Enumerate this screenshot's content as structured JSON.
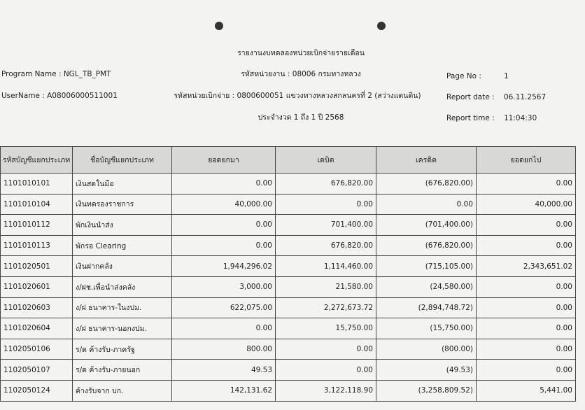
{
  "header": {
    "title": "รายงานงบทดลองหน่วยเบิกจ่ายรายเดือน",
    "program_name": "Program Name : NGL_TB_PMT",
    "username": "UserName : A08006000511001",
    "unit": "รหัสหน่วยงาน : 08006 กรมทางหลวง",
    "disbursing_unit": "รหัสหน่วยเบิกจ่าย : 0800600051 แขวงทางหลวงสกลนครที่ 2 (สว่างแดนดิน)",
    "period": "ประจำงวด 1 ถึง 1 ปี 2568",
    "page_no_label": "Page No :",
    "page_no": "1",
    "report_date_label": "Report date :",
    "report_date": "06.11.2567",
    "report_time_label": "Report time :",
    "report_time": "11:04:30"
  },
  "table": {
    "columns": [
      "รหัสบัญชีแยกประเภท",
      "ชื่อบัญชีแยกประเภท",
      "ยอดยกมา",
      "เดบิต",
      "เครดิต",
      "ยอดยกไป"
    ],
    "rows": [
      [
        "1101010101",
        "เงินสดในมือ",
        "0.00",
        "676,820.00",
        "(676,820.00)",
        "0.00"
      ],
      [
        "1101010104",
        "เงินทดรองราชการ",
        "40,000.00",
        "0.00",
        "0.00",
        "40,000.00"
      ],
      [
        "1101010112",
        "พักเงินนำส่ง",
        "0.00",
        "701,400.00",
        "(701,400.00)",
        "0.00"
      ],
      [
        "1101010113",
        "พักรอ Clearing",
        "0.00",
        "676,820.00",
        "(676,820.00)",
        "0.00"
      ],
      [
        "1101020501",
        "เงินฝากคลัง",
        "1,944,296.02",
        "1,114,460.00",
        "(715,105.00)",
        "2,343,651.02"
      ],
      [
        "1101020601",
        "ง/ฝช.เพื่อนำส่งคลัง",
        "3,000.00",
        "21,580.00",
        "(24,580.00)",
        "0.00"
      ],
      [
        "1101020603",
        "ง/ฝ ธนาคาร-ในงปม.",
        "622,075.00",
        "2,272,673.72",
        "(2,894,748.72)",
        "0.00"
      ],
      [
        "1101020604",
        "ง/ฝ ธนาคาร-นอกงปม.",
        "0.00",
        "15,750.00",
        "(15,750.00)",
        "0.00"
      ],
      [
        "1102050106",
        "ร/ด ค้างรับ-ภาครัฐ",
        "800.00",
        "0.00",
        "(800.00)",
        "0.00"
      ],
      [
        "1102050107",
        "ร/ด ค้างรับ-ภายนอก",
        "49.53",
        "0.00",
        "(49.53)",
        "0.00"
      ],
      [
        "1102050124",
        "ค้างรับจาก บก.",
        "142,131.62",
        "3,122,118.90",
        "(3,258,809.52)",
        "5,441.00"
      ]
    ]
  }
}
